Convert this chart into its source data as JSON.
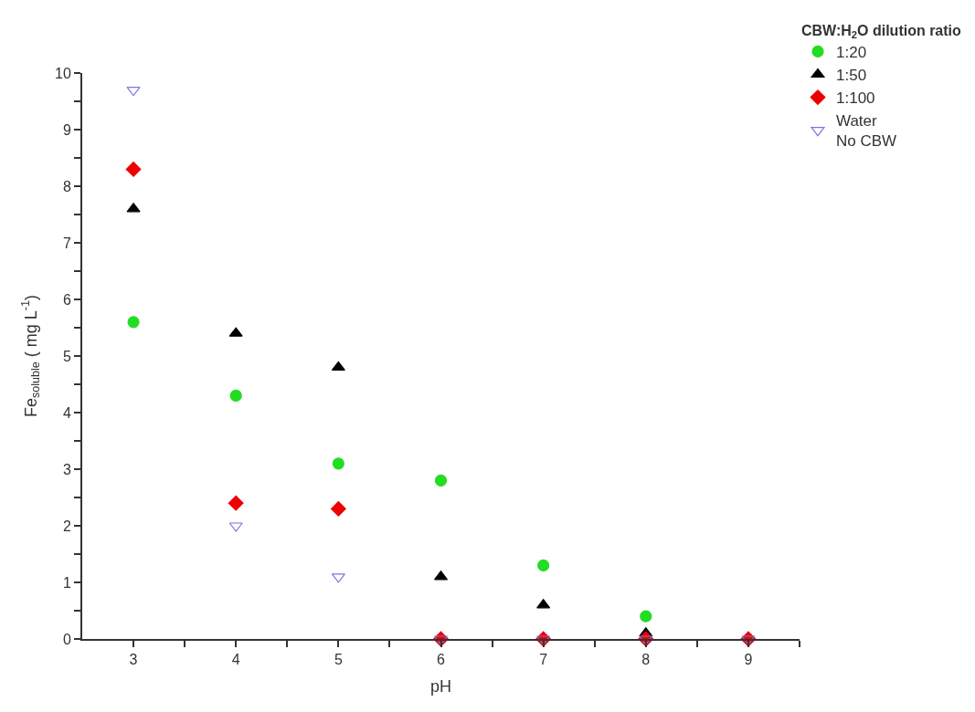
{
  "chart_data": {
    "type": "scatter",
    "xlabel": "pH",
    "ylabel": "Fe$_{soluble}$ ( mg L$^{-1}$)",
    "legend_title": "CBW:H$_{2}$O dilution ratio",
    "series": [
      {
        "name": "1:20",
        "color": "#22dd22",
        "marker": "circle",
        "x": [
          3,
          4,
          5,
          6,
          7,
          8
        ],
        "values": [
          5.6,
          4.3,
          3.1,
          2.8,
          1.3,
          0.4
        ]
      },
      {
        "name": "1:50",
        "color": "#000000",
        "marker": "triangle",
        "x": [
          3,
          4,
          5,
          6,
          7,
          8
        ],
        "values": [
          7.6,
          5.4,
          4.8,
          1.1,
          0.6,
          0.1
        ]
      },
      {
        "name": "1:100",
        "color": "#ee0000",
        "marker": "diamond",
        "x": [
          3,
          4,
          5,
          6,
          7,
          8,
          9
        ],
        "values": [
          8.3,
          2.4,
          2.3,
          0,
          0,
          0,
          0
        ]
      },
      {
        "name": "Water\nNo CBW",
        "color": "#7777dd",
        "marker": "triangle-down-open",
        "x": [
          3,
          4,
          5,
          6,
          7,
          8,
          9
        ],
        "values": [
          9.7,
          2.0,
          1.1,
          0,
          0,
          0,
          0
        ]
      }
    ],
    "xlim": [
      2.5,
      9.5
    ],
    "ylim": [
      0,
      10
    ],
    "xticks": [
      3,
      {
        "value": 3.5,
        "label": null
      },
      4,
      {
        "value": 4.5,
        "label": null
      },
      5,
      {
        "value": 5.5,
        "label": null
      },
      6,
      {
        "value": 6.5,
        "label": null
      },
      7,
      {
        "value": 7.5,
        "label": null
      },
      8,
      {
        "value": 8.5,
        "label": null
      },
      9,
      {
        "value": 9.5,
        "label": null
      }
    ],
    "yticks": [
      0,
      {
        "value": 0.5,
        "label": null
      },
      1,
      {
        "value": 1.5,
        "label": null
      },
      2,
      {
        "value": 2.5,
        "label": null
      },
      3,
      {
        "value": 3.5,
        "label": null
      },
      4,
      {
        "value": 4.5,
        "label": null
      },
      5,
      {
        "value": 5.5,
        "label": null
      },
      6,
      {
        "value": 6.5,
        "label": null
      },
      7,
      {
        "value": 7.5,
        "label": null
      },
      8,
      {
        "value": 8.5,
        "label": null
      },
      9,
      {
        "value": 9.5,
        "label": null
      },
      10
    ],
    "legend": "top right"
  }
}
